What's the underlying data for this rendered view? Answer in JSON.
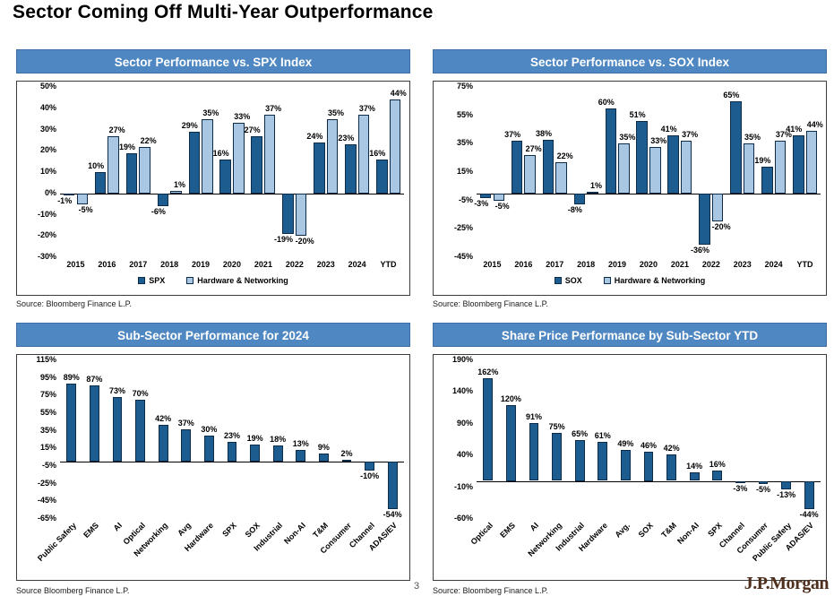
{
  "page": {
    "title": "Sector Coming Off Multi-Year Outperformance",
    "page_number": "3",
    "logo_text": "J.P.Morgan"
  },
  "colors": {
    "banner_bg": "#4E87C1",
    "banner_text": "#FFFFFF",
    "dark_series": "#1D5C8E",
    "light_series": "#A9C6E2",
    "bar_border": "#0D2C49",
    "logo_color": "#4F2F1D"
  },
  "chart_data": [
    {
      "type": "bar",
      "banner": "Sector Performance vs. SPX Index",
      "source": "Source: Bloomberg Finance L.P.",
      "categories": [
        "2015",
        "2016",
        "2017",
        "2018",
        "2019",
        "2020",
        "2021",
        "2022",
        "2023",
        "2024",
        "YTD"
      ],
      "series": [
        {
          "name": "SPX",
          "color": "dark",
          "values": [
            -1,
            10,
            19,
            -6,
            29,
            16,
            27,
            -19,
            24,
            23,
            16
          ]
        },
        {
          "name": "Hardware & Networking",
          "color": "light",
          "values": [
            -5,
            27,
            22,
            1,
            35,
            33,
            37,
            -20,
            35,
            37,
            44
          ]
        }
      ],
      "ylim": [
        -30,
        50
      ],
      "yticks": [
        50,
        40,
        30,
        20,
        10,
        0,
        -10,
        -20,
        -30
      ],
      "legend": true,
      "rotate_labels": false,
      "grid": false
    },
    {
      "type": "bar",
      "banner": "Sector Performance vs. SOX Index",
      "source": "Source: Bloomberg Finance L.P.",
      "categories": [
        "2015",
        "2016",
        "2017",
        "2018",
        "2019",
        "2020",
        "2021",
        "2022",
        "2023",
        "2024",
        "YTD"
      ],
      "series": [
        {
          "name": "SOX",
          "color": "dark",
          "values": [
            -3,
            37,
            38,
            -8,
            60,
            51,
            41,
            -36,
            65,
            19,
            41
          ]
        },
        {
          "name": "Hardware & Networking",
          "color": "light",
          "values": [
            -5,
            27,
            22,
            1,
            35,
            33,
            37,
            -20,
            35,
            37,
            44
          ]
        }
      ],
      "ylim": [
        -45,
        75
      ],
      "yticks": [
        75,
        55,
        35,
        15,
        -5,
        -25,
        -45
      ],
      "legend": true,
      "rotate_labels": false,
      "grid": false
    },
    {
      "type": "bar",
      "banner": "Sub-Sector Performance for 2024",
      "source": "Source Bloomberg Finance L.P.",
      "categories": [
        "Public Safety",
        "EMS",
        "AI",
        "Optical",
        "Networking",
        "Avg",
        "Hardware",
        "SPX",
        "SOX",
        "Industrial",
        "Non-AI",
        "T&M",
        "Consumer",
        "Channel",
        "ADAS/EV"
      ],
      "series": [
        {
          "color": "dark",
          "values": [
            89,
            87,
            73,
            70,
            42,
            37,
            30,
            23,
            19,
            18,
            13,
            9,
            2,
            -10,
            -54
          ]
        }
      ],
      "ylim": [
        -65,
        115
      ],
      "yticks": [
        115,
        95,
        75,
        55,
        35,
        15,
        -5,
        -25,
        -45,
        -65
      ],
      "legend": false,
      "rotate_labels": true,
      "grid": false
    },
    {
      "type": "bar",
      "banner": "Share Price Performance by Sub-Sector YTD",
      "source": "Source: Bloomberg Finance L.P.",
      "categories": [
        "Optical",
        "EMS",
        "AI",
        "Networking",
        "Industrial",
        "Hardware",
        "Avg.",
        "SOX",
        "T&M",
        "Non-AI",
        "SPX",
        "Channel",
        "Consumer",
        "Public Safety",
        "ADAS/EV"
      ],
      "series": [
        {
          "color": "dark",
          "values": [
            162,
            120,
            91,
            75,
            65,
            61,
            49,
            46,
            42,
            14,
            16,
            -3,
            -5,
            -13,
            -44
          ]
        }
      ],
      "ylim": [
        -60,
        190
      ],
      "yticks": [
        190,
        140,
        90,
        40,
        -10,
        -60
      ],
      "legend": false,
      "rotate_labels": true,
      "grid": false
    }
  ]
}
